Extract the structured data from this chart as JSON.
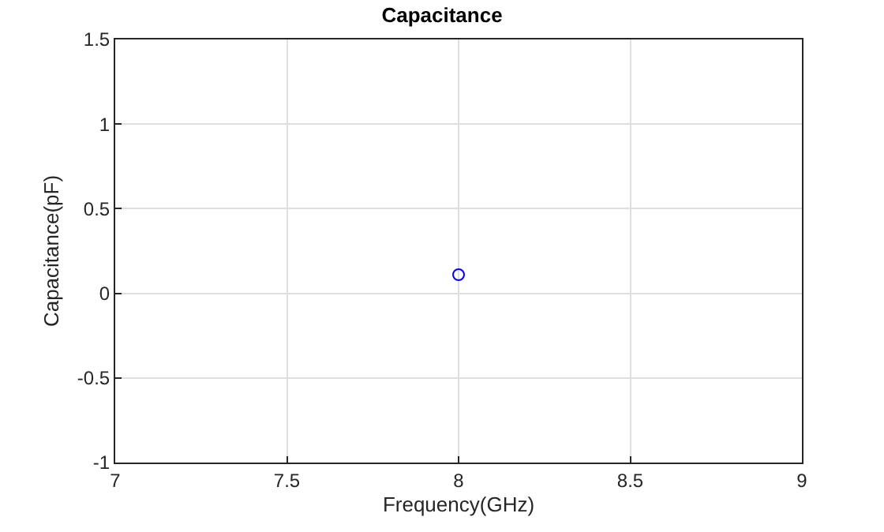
{
  "chart_data": {
    "type": "scatter",
    "title": "Capacitance",
    "xlabel": "Frequency(GHz)",
    "ylabel": "Capacitance(pF)",
    "x": [
      8
    ],
    "series": [
      {
        "color": "#0000ff",
        "values": [
          0.11
        ]
      }
    ],
    "xlim": [
      7,
      9
    ],
    "xticks": [
      7,
      7.5,
      8,
      8.5,
      9
    ],
    "ylim": [
      -1,
      1.5
    ],
    "yticks": [
      -1,
      -0.5,
      0,
      0.5,
      1,
      1.5
    ],
    "grid": true,
    "marker": "circle"
  }
}
